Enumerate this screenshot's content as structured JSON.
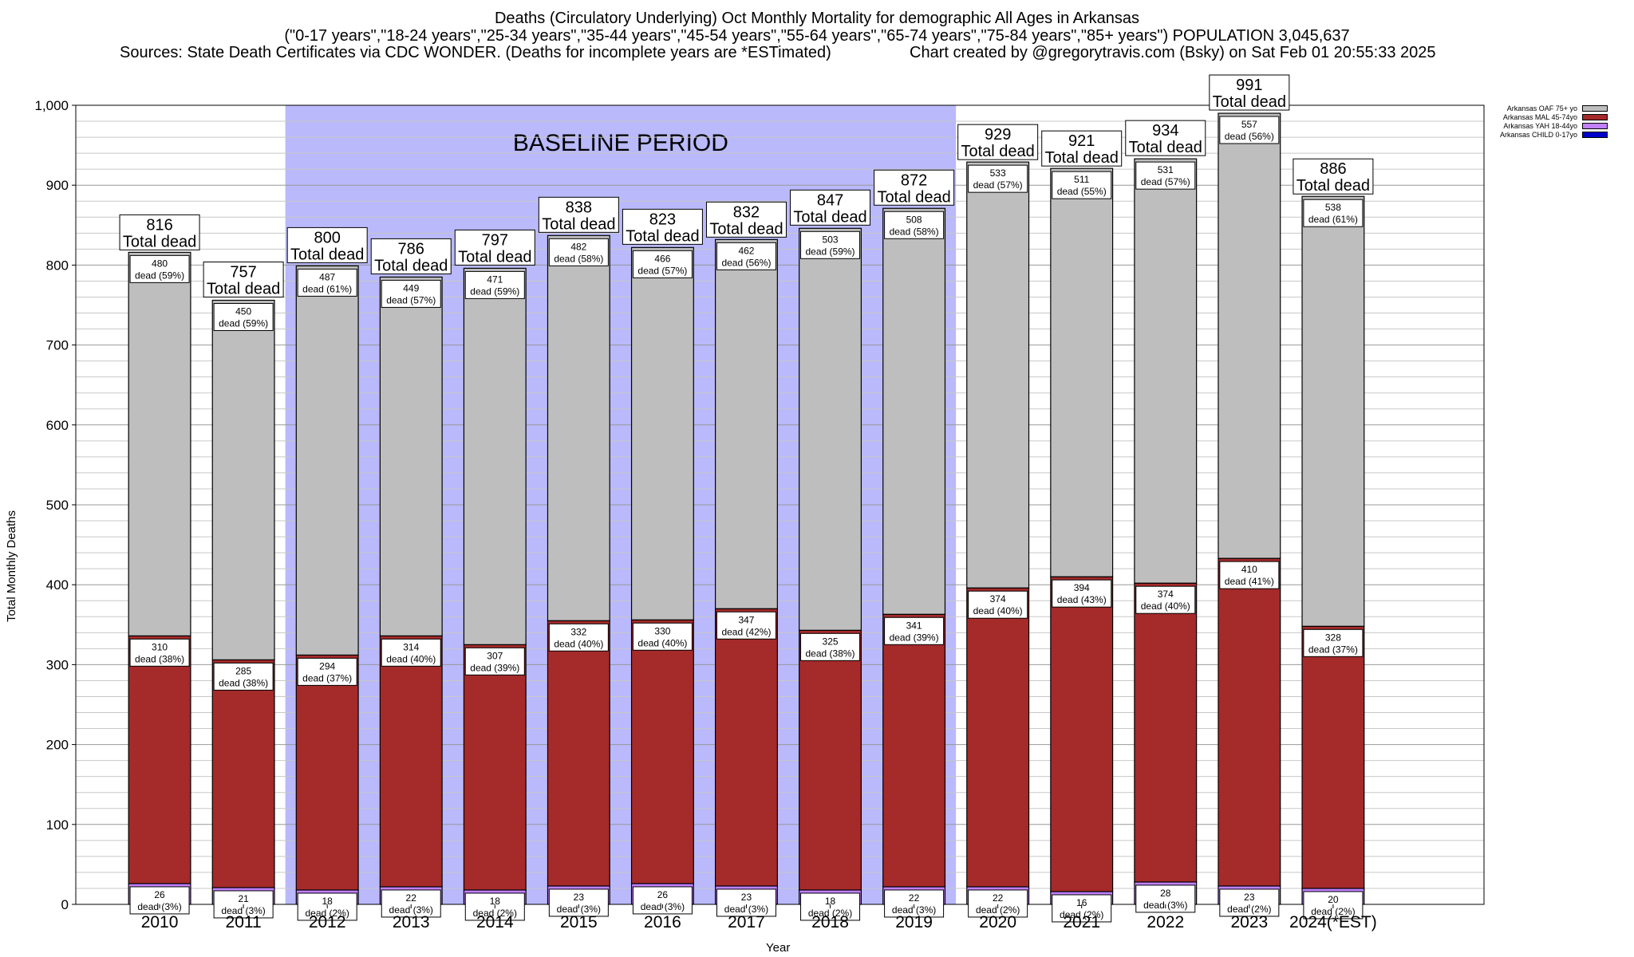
{
  "header": {
    "title": "Deaths (Circulatory Underlying) Oct Monthly Mortality for demographic All Ages in Arkansas",
    "subtitle": "(\"0-17 years\",\"18-24 years\",\"25-34 years\",\"35-44 years\",\"45-54 years\",\"55-64 years\",\"65-74 years\",\"75-84 years\",\"85+ years\") POPULATION 3,045,637",
    "sources": "Sources: State Death Certificates via CDC WONDER. (Deaths for incomplete years are *ESTimated)",
    "credit": "Chart created by @gregorytravis.com (Bsky) on Sat Feb 01 20:55:33 2025"
  },
  "chart_data": {
    "type": "bar",
    "stacked": true,
    "categories": [
      "2010",
      "2011",
      "2012",
      "2013",
      "2014",
      "2015",
      "2016",
      "2017",
      "2018",
      "2019",
      "2020",
      "2021",
      "2022",
      "2023",
      "2024(*EST)"
    ],
    "xlabel": "Year",
    "ylabel": "Total Monthly Deaths",
    "ylim": [
      0,
      1000
    ],
    "yticks": [
      0,
      100,
      200,
      300,
      400,
      500,
      600,
      700,
      800,
      900,
      1000
    ],
    "ytick_labels": [
      "0",
      "100",
      "200",
      "300",
      "400",
      "500",
      "600",
      "700",
      "800",
      "900",
      "1,000"
    ],
    "grid": "horizontal",
    "legend_position": "top-right",
    "baseline_label": "BASELINE PERIOD",
    "baseline_range": [
      "2012",
      "2019"
    ],
    "total_label": "Total dead",
    "series": [
      {
        "name": "Arkansas CHILD 0-17yo",
        "color": "#0000cc",
        "values": [
          0,
          0,
          0,
          0,
          0,
          0,
          0,
          0,
          0,
          0,
          0,
          0,
          0,
          0,
          0
        ]
      },
      {
        "name": "Arkansas YAH 18-44yo",
        "color": "#c080ff",
        "values": [
          26,
          21,
          18,
          22,
          18,
          23,
          26,
          23,
          18,
          22,
          22,
          16,
          28,
          23,
          20
        ],
        "labels": [
          "dead (3%)",
          "dead (3%)",
          "dead (2%)",
          "dead (3%)",
          "dead (2%)",
          "dead (3%)",
          "dead (3%)",
          "dead (3%)",
          "dead (2%)",
          "dead (3%)",
          "dead (2%)",
          "dead (2%)",
          "dead (3%)",
          "dead (2%)",
          "dead (2%)"
        ]
      },
      {
        "name": "Arkansas MAL 45-74yo",
        "color": "#a52a2a",
        "values": [
          310,
          285,
          294,
          314,
          307,
          332,
          330,
          347,
          325,
          341,
          374,
          394,
          374,
          410,
          328
        ],
        "labels": [
          "dead (38%)",
          "dead (38%)",
          "dead (37%)",
          "dead (40%)",
          "dead (39%)",
          "dead (40%)",
          "dead (40%)",
          "dead (42%)",
          "dead (38%)",
          "dead (39%)",
          "dead (40%)",
          "dead (43%)",
          "dead (40%)",
          "dead (41%)",
          "dead (37%)"
        ]
      },
      {
        "name": "Arkansas OAF 75+ yo",
        "color": "#bebebe",
        "values": [
          480,
          450,
          487,
          449,
          471,
          482,
          466,
          462,
          503,
          508,
          533,
          511,
          531,
          557,
          538
        ],
        "labels": [
          "dead (59%)",
          "dead (59%)",
          "dead (61%)",
          "dead (57%)",
          "dead (59%)",
          "dead (58%)",
          "dead (57%)",
          "dead (56%)",
          "dead (59%)",
          "dead (58%)",
          "dead (57%)",
          "dead (55%)",
          "dead (57%)",
          "dead (56%)",
          "dead (61%)"
        ]
      }
    ],
    "totals": [
      816,
      757,
      800,
      786,
      797,
      838,
      823,
      832,
      847,
      872,
      929,
      921,
      934,
      991,
      886
    ]
  }
}
